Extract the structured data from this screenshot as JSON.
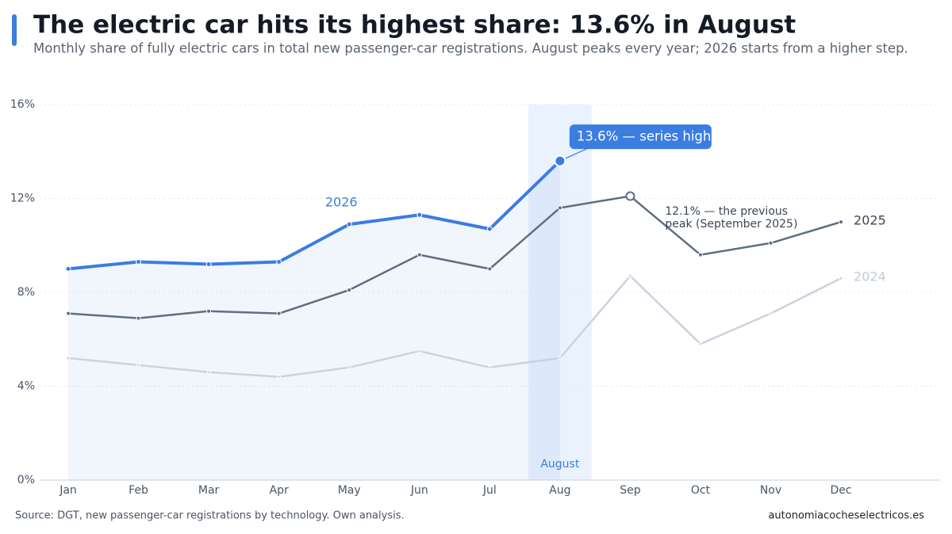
{
  "chart_data": {
    "type": "line",
    "title": "The electric car hits its highest share: 13.6% in August",
    "subtitle": "Monthly share of fully electric cars in total new passenger-car registrations. August peaks every year; 2026 starts from a higher step.",
    "categories": [
      "Jan",
      "Feb",
      "Mar",
      "Apr",
      "May",
      "Jun",
      "Jul",
      "Aug",
      "Sep",
      "Oct",
      "Nov",
      "Dec"
    ],
    "series": [
      {
        "name": "2024",
        "color": "#cbd3dd",
        "values": [
          5.2,
          4.9,
          4.6,
          4.4,
          4.8,
          5.5,
          4.8,
          5.2,
          8.7,
          5.8,
          7.1,
          8.6
        ]
      },
      {
        "name": "2025",
        "color": "#5f6e82",
        "values": [
          7.1,
          6.9,
          7.2,
          7.1,
          8.1,
          9.6,
          9.0,
          11.6,
          12.1,
          9.6,
          10.1,
          11.0
        ]
      },
      {
        "name": "2026",
        "color": "#3b7de0",
        "values": [
          9.0,
          9.3,
          9.2,
          9.3,
          10.9,
          11.3,
          10.7,
          13.6,
          null,
          null,
          null,
          null
        ]
      }
    ],
    "ylim": [
      0,
      16
    ],
    "yticks": [
      {
        "value": 0,
        "label": "0%"
      },
      {
        "value": 4,
        "label": "4%"
      },
      {
        "value": 8,
        "label": "8%"
      },
      {
        "value": 12,
        "label": "12%"
      },
      {
        "value": 16,
        "label": "16%"
      }
    ],
    "grid": true,
    "highlight": {
      "category": "Aug",
      "label": "August"
    },
    "annotations": [
      {
        "text": "13.6% — series high",
        "series": "2026",
        "category": "Aug"
      },
      {
        "text": "12.1% — the previous peak (September 2025)",
        "series": "2025",
        "category": "Sep"
      }
    ],
    "source": "Source: DGT, new passenger-car registrations by technology. Own analysis.",
    "site": "autonomiacocheselectricos.es"
  }
}
